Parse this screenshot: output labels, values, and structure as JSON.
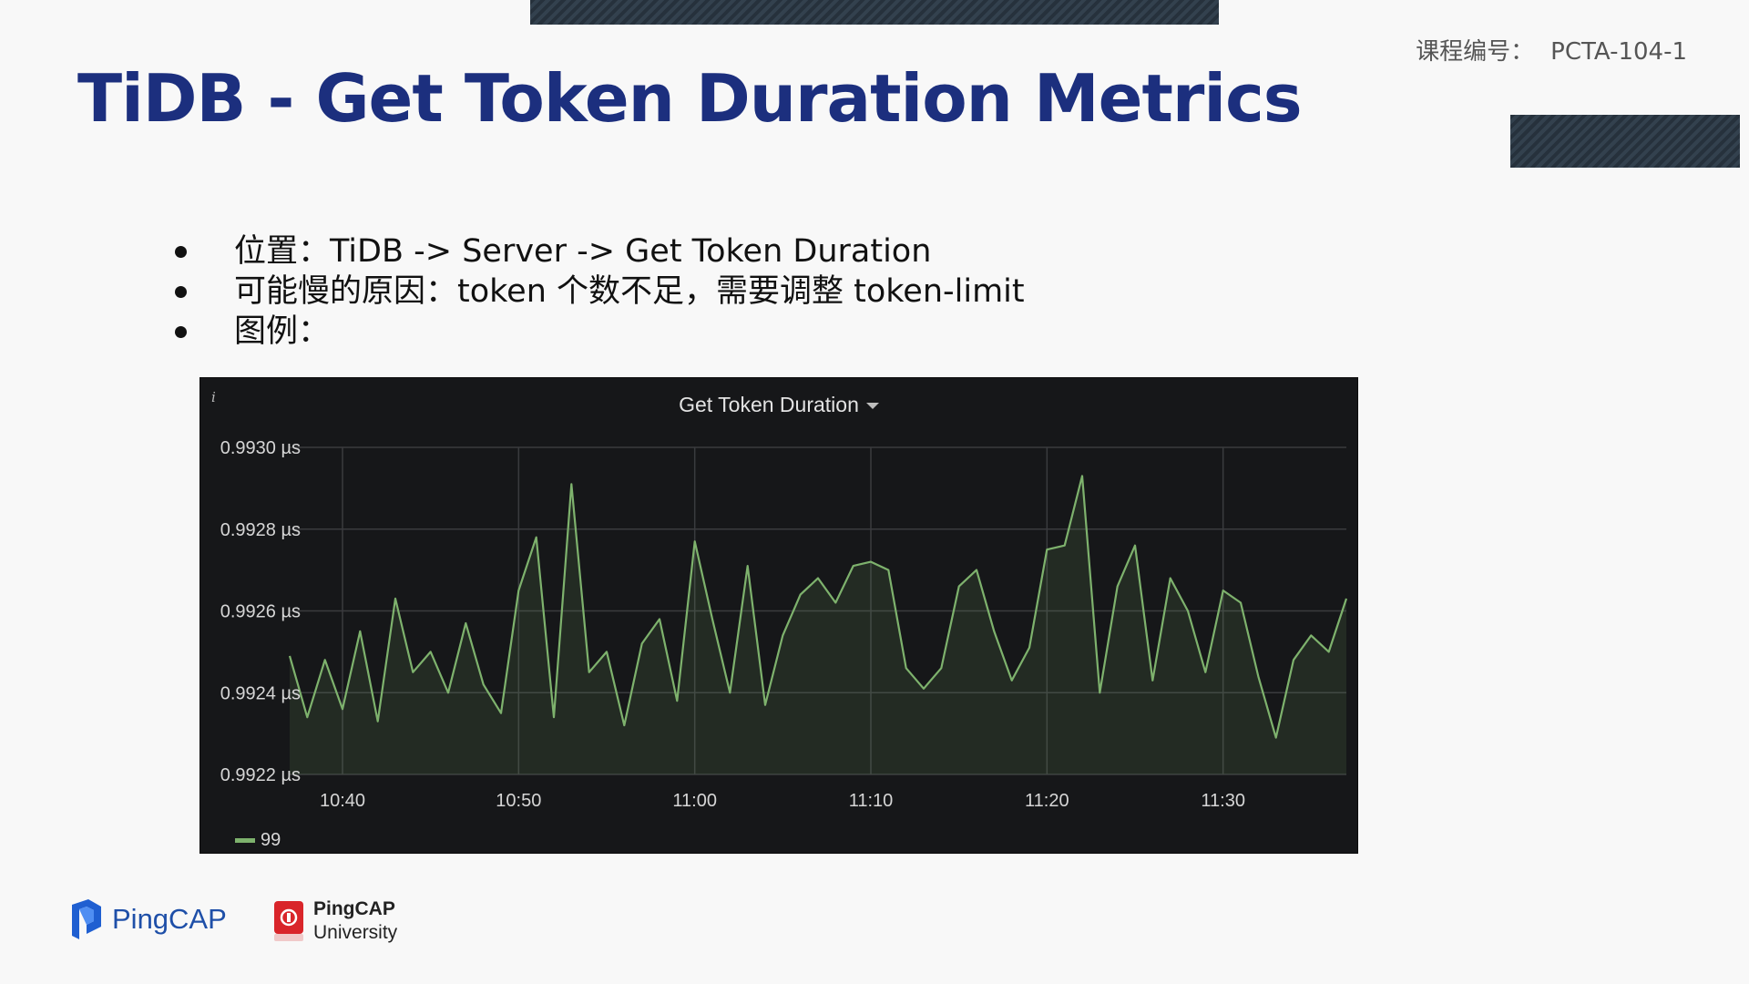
{
  "slide": {
    "course_code_label": "课程编号：",
    "course_code": "PCTA-104-1",
    "title": "TiDB - Get Token Duration Metrics",
    "bullets": [
      "位置：TiDB -> Server -> Get Token Duration",
      "可能慢的原因：token 个数不足，需要调整 token-limit",
      "图例："
    ]
  },
  "panel": {
    "info_icon": "i",
    "title": "Get Token Duration",
    "legend_label": "99"
  },
  "chart_data": {
    "type": "line",
    "title": "Get Token Duration",
    "xlabel": "",
    "ylabel": "",
    "x_ticks": [
      "10:40",
      "10:50",
      "11:00",
      "11:10",
      "11:20",
      "11:30"
    ],
    "y_ticks": [
      "0.9922 µs",
      "0.9924 µs",
      "0.9926 µs",
      "0.9928 µs",
      "0.9930 µs"
    ],
    "ylim": [
      0.9922,
      0.993
    ],
    "x_range_minutes": [
      "10:37",
      "11:37"
    ],
    "grid": true,
    "legend_position": "bottom-left",
    "series": [
      {
        "name": "99",
        "color": "#7eb26d",
        "x": [
          "10:37",
          "10:38",
          "10:39",
          "10:40",
          "10:41",
          "10:42",
          "10:43",
          "10:44",
          "10:45",
          "10:46",
          "10:47",
          "10:48",
          "10:49",
          "10:50",
          "10:51",
          "10:52",
          "10:53",
          "10:54",
          "10:55",
          "10:56",
          "10:57",
          "10:58",
          "10:59",
          "11:00",
          "11:01",
          "11:02",
          "11:03",
          "11:04",
          "11:05",
          "11:06",
          "11:07",
          "11:08",
          "11:09",
          "11:10",
          "11:11",
          "11:12",
          "11:13",
          "11:14",
          "11:15",
          "11:16",
          "11:17",
          "11:18",
          "11:19",
          "11:20",
          "11:21",
          "11:22",
          "11:23",
          "11:24",
          "11:25",
          "11:26",
          "11:27",
          "11:28",
          "11:29",
          "11:30",
          "11:31",
          "11:32",
          "11:33",
          "11:34",
          "11:35",
          "11:36",
          "11:37"
        ],
        "values": [
          0.99249,
          0.99234,
          0.99248,
          0.99236,
          0.99255,
          0.99233,
          0.99263,
          0.99245,
          0.9925,
          0.9924,
          0.99257,
          0.99242,
          0.99235,
          0.99265,
          0.99278,
          0.99234,
          0.99291,
          0.99245,
          0.9925,
          0.99232,
          0.99252,
          0.99258,
          0.99238,
          0.99277,
          0.99258,
          0.9924,
          0.99271,
          0.99237,
          0.99254,
          0.99264,
          0.99268,
          0.99262,
          0.99271,
          0.99272,
          0.9927,
          0.99246,
          0.99241,
          0.99246,
          0.99266,
          0.9927,
          0.99255,
          0.99243,
          0.99251,
          0.99275,
          0.99276,
          0.99293,
          0.9924,
          0.99266,
          0.99276,
          0.99243,
          0.99268,
          0.9926,
          0.99245,
          0.99265,
          0.99262,
          0.99244,
          0.99229,
          0.99248,
          0.99254,
          0.9925,
          0.99263
        ]
      }
    ]
  }
}
